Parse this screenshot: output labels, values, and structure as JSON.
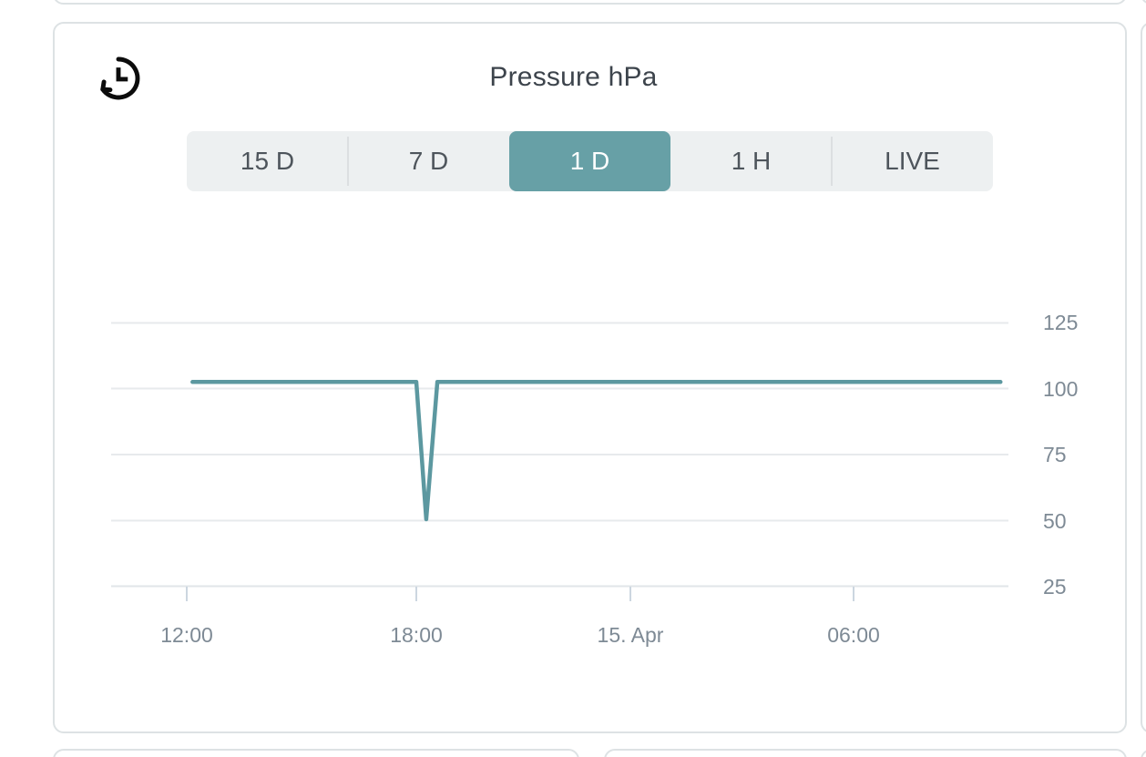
{
  "card": {
    "title": "Pressure hPa",
    "history_button": {
      "icon": "history-clock-arrow-icon",
      "color": "#0c0c0c"
    }
  },
  "range_selector": {
    "options": [
      {
        "label": "15 D",
        "active": false
      },
      {
        "label": "7 D",
        "active": false
      },
      {
        "label": "1 D",
        "active": true
      },
      {
        "label": "1 H",
        "active": false
      },
      {
        "label": "LIVE",
        "active": false
      }
    ],
    "active_bg": "#67a0a6",
    "active_text": "#ffffff"
  },
  "chart_data": {
    "type": "line",
    "title": "Pressure hPa",
    "xlabel": "",
    "ylabel": "",
    "x_tick_labels": [
      "12:00",
      "18:00",
      "15. Apr",
      "06:00"
    ],
    "x_tick_hours": [
      0,
      6,
      12,
      18
    ],
    "x_unit": "hours_since_12:00_14_Apr",
    "xlim_hours": [
      -2,
      21.5
    ],
    "y_tick_labels": [
      "125",
      "100",
      "75",
      "50",
      "25"
    ],
    "y_ticks": [
      125,
      100,
      75,
      50,
      25
    ],
    "ylim": [
      25,
      150
    ],
    "grid": true,
    "legend": false,
    "series": [
      {
        "name": "Pressure hPa",
        "color": "#5c98a0",
        "points": [
          [
            0.15,
            102.5
          ],
          [
            6.0,
            102.5
          ],
          [
            6.26,
            50.5
          ],
          [
            6.55,
            102.5
          ],
          [
            21.27,
            102.5
          ]
        ]
      }
    ]
  }
}
